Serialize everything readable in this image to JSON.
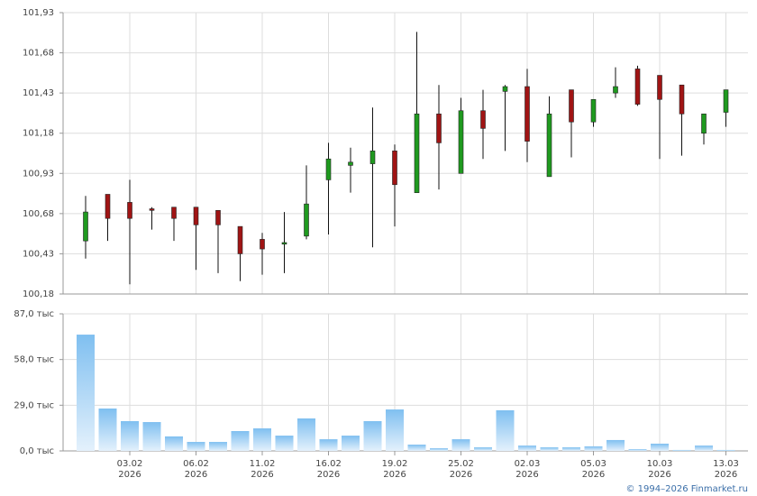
{
  "chart_data": [
    {
      "type": "candlestick",
      "categories": [
        null,
        null,
        "03.02 2026",
        null,
        null,
        "06.02 2026",
        null,
        null,
        "11.02 2026",
        null,
        null,
        "16.02 2026",
        null,
        null,
        "19.02 2026",
        null,
        null,
        "25.02 2026",
        null,
        null,
        "02.03 2026",
        null,
        null,
        "05.03 2026",
        null,
        null,
        "10.03 2026",
        null,
        null,
        "13.03 2026"
      ],
      "open": [
        100.51,
        100.8,
        100.75,
        100.71,
        100.72,
        100.72,
        100.7,
        100.6,
        100.52,
        100.49,
        100.54,
        100.89,
        100.98,
        100.99,
        101.07,
        100.81,
        101.3,
        100.93,
        101.32,
        101.44,
        101.47,
        100.91,
        101.45,
        101.25,
        101.43,
        101.58,
        101.54,
        101.48,
        101.18,
        101.31
      ],
      "high": [
        100.79,
        100.8,
        100.89,
        100.72,
        100.72,
        100.72,
        100.7,
        100.6,
        100.56,
        100.69,
        100.98,
        101.12,
        101.09,
        101.34,
        101.11,
        101.81,
        101.48,
        101.4,
        101.45,
        101.48,
        101.58,
        101.41,
        101.45,
        101.39,
        101.59,
        101.6,
        101.54,
        101.48,
        101.3,
        101.45
      ],
      "low": [
        100.4,
        100.51,
        100.24,
        100.58,
        100.51,
        100.33,
        100.31,
        100.26,
        100.3,
        100.31,
        100.52,
        100.55,
        100.81,
        100.47,
        100.6,
        100.81,
        100.83,
        100.93,
        101.02,
        101.07,
        101.0,
        100.91,
        101.03,
        101.22,
        101.4,
        101.35,
        101.02,
        101.04,
        101.11,
        101.22
      ],
      "close": [
        100.69,
        100.65,
        100.65,
        100.7,
        100.65,
        100.61,
        100.61,
        100.43,
        100.46,
        100.5,
        100.74,
        101.02,
        101.0,
        101.07,
        100.86,
        101.3,
        101.12,
        101.32,
        101.21,
        101.47,
        101.13,
        101.3,
        101.25,
        101.39,
        101.47,
        101.36,
        101.39,
        101.3,
        101.3,
        101.45
      ],
      "up_color": "#1f9a1f",
      "down_color": "#a01414",
      "flat_color": "#222222",
      "ylim": [
        100.18,
        101.93
      ],
      "yticks": [
        {
          "value": 100.18,
          "label": "100,18"
        },
        {
          "value": 100.43,
          "label": "100,43"
        },
        {
          "value": 100.68,
          "label": "100,68"
        },
        {
          "value": 100.93,
          "label": "100,93"
        },
        {
          "value": 101.18,
          "label": "101,18"
        },
        {
          "value": 101.43,
          "label": "101,43"
        },
        {
          "value": 101.68,
          "label": "101,68"
        },
        {
          "value": 101.93,
          "label": "101,93"
        }
      ],
      "grid": true
    },
    {
      "type": "bar",
      "values": [
        73.8,
        26.9,
        18.9,
        18.3,
        9.2,
        5.7,
        5.7,
        12.6,
        14.3,
        9.7,
        20.6,
        7.4,
        9.7,
        18.9,
        26.3,
        4.0,
        1.7,
        7.4,
        2.3,
        25.8,
        3.4,
        2.3,
        2.3,
        2.9,
        6.9,
        1.1,
        4.6,
        0.6,
        3.4,
        0.6
      ],
      "color": "#7fbff0",
      "ylim": [
        0,
        87
      ],
      "yticks": [
        {
          "value": 0,
          "label": "0,0 тыс"
        },
        {
          "value": 29,
          "label": "29,0 тыс"
        },
        {
          "value": 58,
          "label": "58,0 тыс"
        },
        {
          "value": 87,
          "label": "87,0 тыс"
        }
      ],
      "grid": true,
      "watermark": "© 1994–2026 Finmarket.ru"
    }
  ]
}
